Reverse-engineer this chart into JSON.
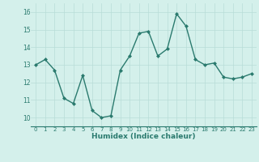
{
  "x": [
    0,
    1,
    2,
    3,
    4,
    5,
    6,
    7,
    8,
    9,
    10,
    11,
    12,
    13,
    14,
    15,
    16,
    17,
    18,
    19,
    20,
    21,
    22,
    23
  ],
  "y": [
    13.0,
    13.3,
    12.7,
    11.1,
    10.8,
    12.4,
    10.4,
    10.0,
    10.1,
    12.7,
    13.5,
    14.8,
    14.9,
    13.5,
    13.9,
    15.9,
    15.2,
    13.3,
    13.0,
    13.1,
    12.3,
    12.2,
    12.3,
    12.5
  ],
  "xlabel": "Humidex (Indice chaleur)",
  "ylim": [
    9.5,
    16.5
  ],
  "xlim": [
    -0.5,
    23.5
  ],
  "yticks": [
    10,
    11,
    12,
    13,
    14,
    15,
    16
  ],
  "xticks": [
    0,
    1,
    2,
    3,
    4,
    5,
    6,
    7,
    8,
    9,
    10,
    11,
    12,
    13,
    14,
    15,
    16,
    17,
    18,
    19,
    20,
    21,
    22,
    23
  ],
  "line_color": "#2a7a6e",
  "marker_color": "#2a7a6e",
  "bg_color": "#d4f0eb",
  "grid_color": "#b8ddd7",
  "tick_label_color": "#2a7a6e",
  "xlabel_color": "#2a7a6e"
}
